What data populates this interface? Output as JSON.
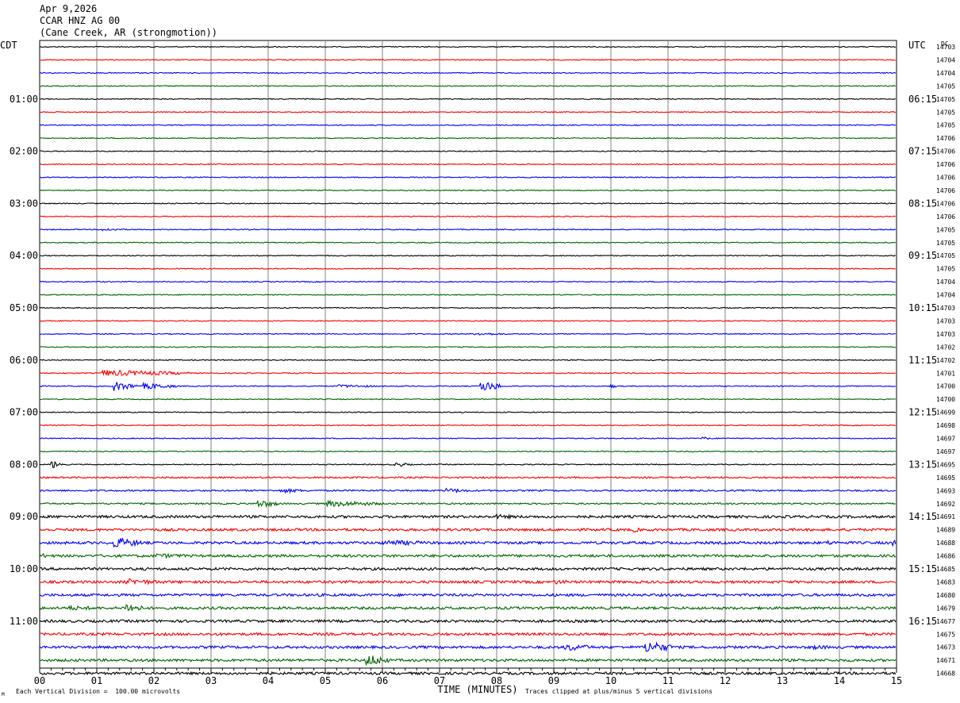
{
  "header": {
    "date": "Apr 9,2026",
    "station": "CCAR HNZ AG 00",
    "location": "(Cane Creek, AR (strongmotion))"
  },
  "chart_data": {
    "type": "line",
    "left_axis_title": "CDT",
    "right_axis_title": "UTC",
    "right_column_title": "DC",
    "left_hour_labels": [
      "01:00",
      "02:00",
      "03:00",
      "04:00",
      "05:00",
      "06:00",
      "07:00",
      "08:00",
      "09:00",
      "10:00",
      "11:00"
    ],
    "right_hour_labels": [
      "06:15",
      "07:15",
      "08:15",
      "09:15",
      "10:15",
      "11:15",
      "12:15",
      "13:15",
      "14:15",
      "15:15",
      "16:15"
    ],
    "x_tick_labels": [
      "00",
      "01",
      "02",
      "03",
      "04",
      "05",
      "06",
      "07",
      "08",
      "09",
      "10",
      "11",
      "12",
      "13",
      "14",
      "15"
    ],
    "xlabel": "TIME (MINUTES)",
    "xlim": [
      0,
      15
    ],
    "trace_colors": [
      "#000000",
      "#ff0000",
      "#0000ff",
      "#006400"
    ],
    "grid": true,
    "dc_offsets": [
      14703,
      14704,
      14704,
      14705,
      14705,
      14705,
      14705,
      14706,
      14706,
      14706,
      14706,
      14706,
      14706,
      14706,
      14705,
      14705,
      14705,
      14705,
      14704,
      14704,
      14703,
      14703,
      14703,
      14702,
      14702,
      14701,
      14700,
      14700,
      14699,
      14698,
      14697,
      14697,
      14695,
      14695,
      14693,
      14692,
      14691,
      14689,
      14688,
      14686,
      14685,
      14683,
      14680,
      14679,
      14677,
      14675,
      14673,
      14671,
      14668
    ],
    "events": [
      {
        "trace": 14,
        "minute": 1.1,
        "amp": 2,
        "dur": 0.4
      },
      {
        "trace": 22,
        "minute": 7.6,
        "amp": 2,
        "dur": 0.6
      },
      {
        "trace": 25,
        "minute": 1.1,
        "amp": 4,
        "dur": 1.5
      },
      {
        "trace": 26,
        "minute": 10.0,
        "amp": 3,
        "dur": 0.1
      },
      {
        "trace": 26,
        "minute": 1.3,
        "amp": 6,
        "dur": 0.4
      },
      {
        "trace": 26,
        "minute": 1.8,
        "amp": 4,
        "dur": 0.6
      },
      {
        "trace": 26,
        "minute": 5.2,
        "amp": 2,
        "dur": 0.8
      },
      {
        "trace": 26,
        "minute": 7.7,
        "amp": 7,
        "dur": 0.4
      },
      {
        "trace": 30,
        "minute": 11.6,
        "amp": 2,
        "dur": 0.2
      },
      {
        "trace": 32,
        "minute": 0.2,
        "amp": 5,
        "dur": 0.2
      },
      {
        "trace": 32,
        "minute": 6.2,
        "amp": 3,
        "dur": 0.3
      },
      {
        "trace": 34,
        "minute": 4.2,
        "amp": 3,
        "dur": 0.5
      },
      {
        "trace": 34,
        "minute": 7.1,
        "amp": 3,
        "dur": 0.5
      },
      {
        "trace": 35,
        "minute": 3.8,
        "amp": 5,
        "dur": 0.4
      },
      {
        "trace": 35,
        "minute": 5.0,
        "amp": 4,
        "dur": 1.0
      },
      {
        "trace": 36,
        "minute": 8.0,
        "amp": 3,
        "dur": 0.5
      },
      {
        "trace": 37,
        "minute": 10.4,
        "amp": 3,
        "dur": 0.2
      },
      {
        "trace": 38,
        "minute": 1.3,
        "amp": 7,
        "dur": 0.5
      },
      {
        "trace": 38,
        "minute": 6.0,
        "amp": 4,
        "dur": 0.9
      },
      {
        "trace": 38,
        "minute": 13.8,
        "amp": 3,
        "dur": 0.3
      },
      {
        "trace": 38,
        "minute": 14.9,
        "amp": 6,
        "dur": 0.1
      },
      {
        "trace": 39,
        "minute": 0.0,
        "amp": 3,
        "dur": 0.3
      },
      {
        "trace": 39,
        "minute": 2.0,
        "amp": 3,
        "dur": 1.0
      },
      {
        "trace": 41,
        "minute": 1.5,
        "amp": 4,
        "dur": 0.8
      },
      {
        "trace": 41,
        "minute": 9.0,
        "amp": 3,
        "dur": 0.4
      },
      {
        "trace": 43,
        "minute": 0.5,
        "amp": 3,
        "dur": 0.8
      },
      {
        "trace": 43,
        "minute": 1.5,
        "amp": 7,
        "dur": 0.3
      },
      {
        "trace": 46,
        "minute": 9.2,
        "amp": 5,
        "dur": 0.5
      },
      {
        "trace": 46,
        "minute": 10.6,
        "amp": 8,
        "dur": 0.5
      },
      {
        "trace": 46,
        "minute": 13.5,
        "amp": 3,
        "dur": 0.5
      },
      {
        "trace": 47,
        "minute": 5.7,
        "amp": 8,
        "dur": 0.4
      }
    ]
  },
  "footer": {
    "scale_note": "Each Vertical Division =  100.00 microvolts",
    "clip_note": "Traces clipped at plus/minus 5 vertical divisions",
    "corner_mark": "M"
  }
}
